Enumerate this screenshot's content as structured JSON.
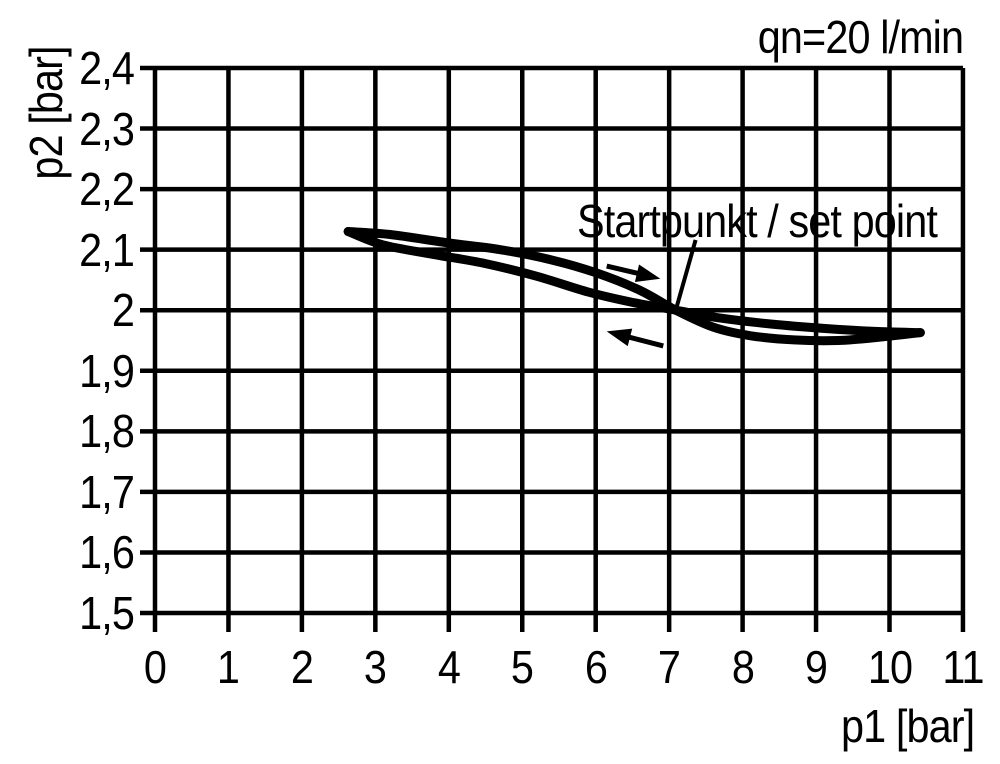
{
  "figure": {
    "flow_note": "qn=20 l/min",
    "annotation_label": "Startpunkt / set point",
    "xlabel": "p1 [bar]",
    "ylabel": "p2 [bar]"
  },
  "chart_data": {
    "type": "line",
    "title": "",
    "xlabel": "p1 [bar]",
    "ylabel": "p2 [bar]",
    "xlim": [
      0,
      11
    ],
    "ylim": [
      1.5,
      2.4
    ],
    "grid": true,
    "legend": "none",
    "ink_color": "#000000",
    "background_color": "#ffffff",
    "flow_note": "qn=20 l/min",
    "x_ticks": [
      {
        "value": 0,
        "label": "0"
      },
      {
        "value": 1,
        "label": "1"
      },
      {
        "value": 2,
        "label": "2"
      },
      {
        "value": 3,
        "label": "3"
      },
      {
        "value": 4,
        "label": "4"
      },
      {
        "value": 5,
        "label": "5"
      },
      {
        "value": 6,
        "label": "6"
      },
      {
        "value": 7,
        "label": "7"
      },
      {
        "value": 8,
        "label": "8"
      },
      {
        "value": 9,
        "label": "9"
      },
      {
        "value": 10,
        "label": "10"
      },
      {
        "value": 11,
        "label": "11"
      }
    ],
    "y_ticks": [
      {
        "value": 2.4,
        "label": "2,4"
      },
      {
        "value": 2.3,
        "label": "2,3"
      },
      {
        "value": 2.2,
        "label": "2,2"
      },
      {
        "value": 2.1,
        "label": "2,1"
      },
      {
        "value": 2.0,
        "label": "2"
      },
      {
        "value": 1.9,
        "label": "1,9"
      },
      {
        "value": 1.8,
        "label": "1,8"
      },
      {
        "value": 1.7,
        "label": "1,7"
      },
      {
        "value": 1.6,
        "label": "1,6"
      },
      {
        "value": 1.5,
        "label": "1,5"
      }
    ],
    "series": [
      {
        "name": "hysteresis_branch_1",
        "points": [
          [
            2.63,
            2.13
          ],
          [
            3.2,
            2.125
          ],
          [
            4.0,
            2.111
          ],
          [
            4.7,
            2.1
          ],
          [
            5.4,
            2.083
          ],
          [
            6.0,
            2.062
          ],
          [
            6.6,
            2.033
          ],
          [
            7.09,
            2.0
          ],
          [
            7.6,
            1.972
          ],
          [
            8.1,
            1.958
          ],
          [
            8.7,
            1.951
          ],
          [
            9.3,
            1.95
          ],
          [
            9.9,
            1.956
          ],
          [
            10.42,
            1.963
          ]
        ]
      },
      {
        "name": "hysteresis_branch_2",
        "points": [
          [
            2.63,
            2.13
          ],
          [
            3.1,
            2.108
          ],
          [
            3.8,
            2.092
          ],
          [
            4.5,
            2.077
          ],
          [
            5.2,
            2.056
          ],
          [
            5.9,
            2.03
          ],
          [
            6.5,
            2.013
          ],
          [
            7.09,
            2.0
          ],
          [
            7.7,
            1.987
          ],
          [
            8.4,
            1.977
          ],
          [
            9.1,
            1.97
          ],
          [
            9.8,
            1.965
          ],
          [
            10.42,
            1.963
          ]
        ]
      }
    ],
    "annotations": {
      "set_point": {
        "label": "Startpunkt / set point",
        "x": 7.09,
        "y": 2.0
      },
      "leader_line": {
        "from": [
          7.36,
          2.116
        ],
        "to": [
          7.09,
          2.0
        ]
      },
      "arrows": [
        {
          "name": "flow-arrow-forward",
          "from": [
            6.15,
            2.073
          ],
          "to": [
            6.88,
            2.052
          ]
        },
        {
          "name": "flow-arrow-return",
          "from": [
            6.92,
            1.941
          ],
          "to": [
            6.15,
            1.965
          ]
        }
      ]
    }
  }
}
